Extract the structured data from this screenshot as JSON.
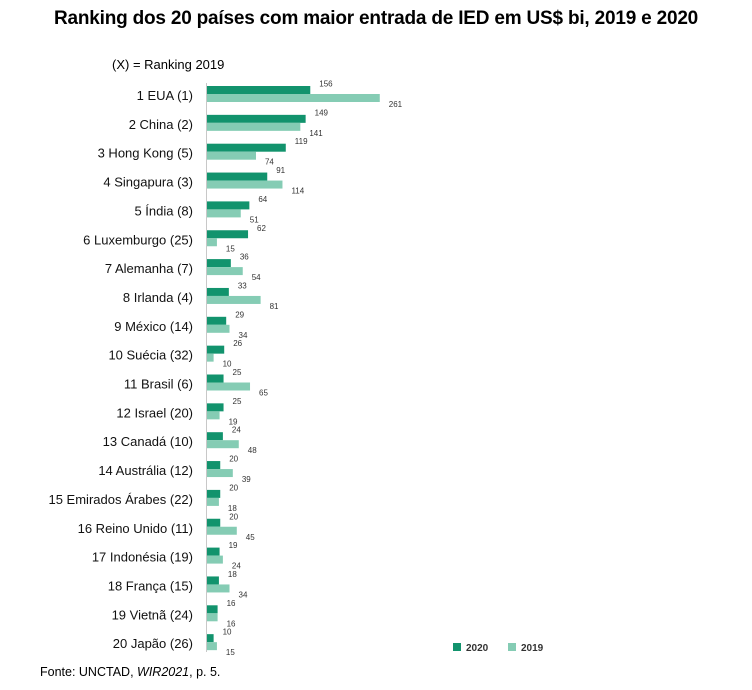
{
  "title": "Ranking dos 20 países com maior entrada de IED em US$ bi, 2019 e 2020",
  "subtitle": "(X) = Ranking 2019",
  "source": {
    "prefix": "Fonte: UNCTAD, ",
    "publication": "WIR2021",
    "suffix": ", p. 5."
  },
  "colors": {
    "s2020": "#12936d",
    "s2019": "#85ccb4"
  },
  "chart_data": {
    "type": "bar",
    "orientation": "horizontal",
    "categories": [
      "1 EUA (1)",
      "2 China (2)",
      "3 Hong Kong (5)",
      "4 Singapura (3)",
      "5 Índia (8)",
      "6 Luxemburgo (25)",
      "7 Alemanha (7)",
      "8 Irlanda (4)",
      "9 México (14)",
      "10 Suécia (32)",
      "11  Brasil (6)",
      "12 Israel (20)",
      "13 Canadá (10)",
      "14 Austrália (12)",
      "15 Emirados Árabes (22)",
      "16 Reino Unido (11)",
      "17 Indonésia (19)",
      "18 França (15)",
      "19 Vietnã (24)",
      "20 Japão (26)"
    ],
    "series": [
      {
        "name": "2020",
        "values": [
          156,
          149,
          119,
          91,
          64,
          62,
          36,
          33,
          29,
          26,
          25,
          25,
          24,
          20,
          20,
          20,
          19,
          18,
          16,
          10
        ]
      },
      {
        "name": "2019",
        "values": [
          261,
          141,
          74,
          114,
          51,
          15,
          54,
          81,
          34,
          10,
          65,
          19,
          48,
          39,
          18,
          45,
          24,
          34,
          16,
          15
        ]
      }
    ],
    "data_labels": {
      "2020": [
        "156",
        "149",
        "119",
        "91",
        "64",
        "62",
        "36",
        "33",
        "29",
        "26",
        "25",
        "25",
        "24",
        "20",
        "20",
        "20",
        "19",
        "18",
        "16",
        "10"
      ],
      "2019": [
        "261",
        "141",
        "74",
        "114",
        "51",
        "15",
        "54",
        "81",
        "34",
        "10",
        "65",
        "19",
        "48",
        "39",
        "18",
        "45",
        "24",
        "34",
        "16",
        "15"
      ]
    },
    "xlim": [
      0,
      261
    ],
    "grid": false,
    "legend": {
      "position": "bottom-right",
      "entries": [
        "2020",
        "2019"
      ]
    }
  }
}
